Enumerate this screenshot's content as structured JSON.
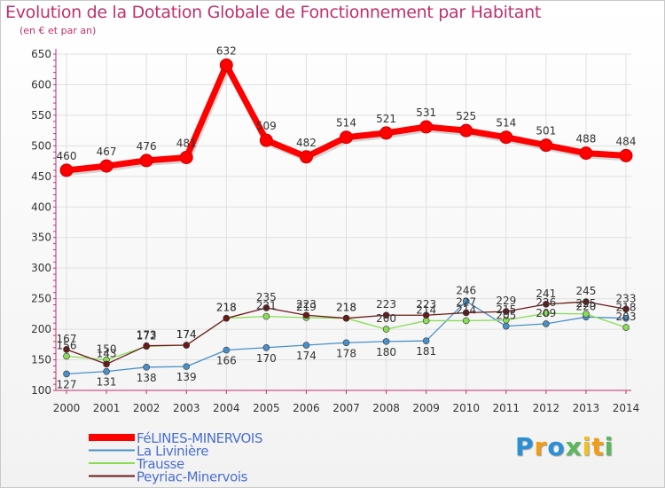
{
  "title": "Evolution de la Dotation Globale de Fonctionnement par Habitant",
  "subtitle": "(en € et par an)",
  "logo_text": "Proxiti",
  "colors": {
    "title": "#c0306e",
    "axis": "#c0306e",
    "grid": "#e0e0e0"
  },
  "chart_data": {
    "type": "line",
    "title": "Evolution de la Dotation Globale de Fonctionnement par Habitant",
    "subtitle": "(en € et par an)",
    "xlabel": "",
    "ylabel": "",
    "categories": [
      "2000",
      "2001",
      "2002",
      "2003",
      "2004",
      "2005",
      "2006",
      "2007",
      "2008",
      "2009",
      "2010",
      "2011",
      "2012",
      "2013",
      "2014"
    ],
    "ylim": [
      100,
      650
    ],
    "yticks": [
      100,
      150,
      200,
      250,
      300,
      350,
      400,
      450,
      500,
      550,
      600,
      650
    ],
    "grid": true,
    "legend": "bottom-left",
    "series": [
      {
        "name": "FéLINES-MINERVOIS",
        "color": "#ff0000",
        "values": [
          460,
          467,
          476,
          481,
          632,
          509,
          482,
          514,
          521,
          531,
          525,
          514,
          501,
          488,
          484
        ]
      },
      {
        "name": "La Livinière",
        "color": "#4a90c8",
        "values": [
          127,
          131,
          138,
          139,
          166,
          170,
          174,
          178,
          180,
          181,
          246,
          205,
          209,
          220,
          218
        ]
      },
      {
        "name": "Trausse",
        "color": "#88dd55",
        "values": [
          156,
          150,
          172,
          174,
          218,
          221,
          219,
          218,
          200,
          214,
          214,
          215,
          226,
          225,
          203
        ]
      },
      {
        "name": "Peyriac-Minervois",
        "color": "#6b1a1a",
        "values": [
          167,
          143,
          173,
          174,
          218,
          235,
          223,
          218,
          223,
          223,
          227,
          229,
          241,
          245,
          233
        ]
      }
    ]
  }
}
